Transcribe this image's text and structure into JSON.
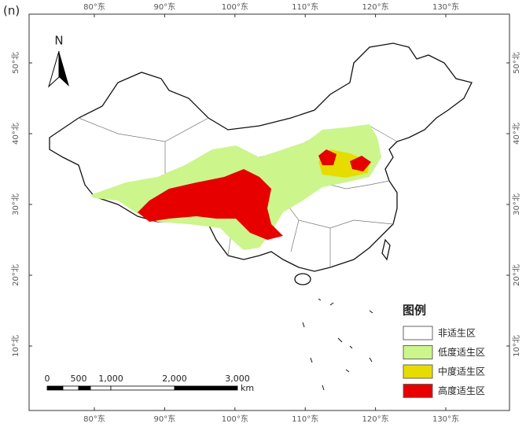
{
  "panel_label": "(n)",
  "north_label": "N",
  "longitude_labels": [
    "80°东",
    "90°东",
    "100°东",
    "110°东",
    "120°东",
    "130°东"
  ],
  "latitude_labels": [
    "50°北",
    "40°北",
    "30°北",
    "20°北",
    "10°北"
  ],
  "legend": {
    "title": "图例",
    "items": [
      {
        "label": "非适生区",
        "color": "#ffffff"
      },
      {
        "label": "低度适生区",
        "color": "#ccf58c"
      },
      {
        "label": "中度适生区",
        "color": "#e6dc00"
      },
      {
        "label": "高度适生区",
        "color": "#e60000"
      }
    ]
  },
  "scale_bar": {
    "labels": [
      "0",
      "500",
      "1,000",
      "2,000",
      "3,000"
    ],
    "unit": "km"
  }
}
